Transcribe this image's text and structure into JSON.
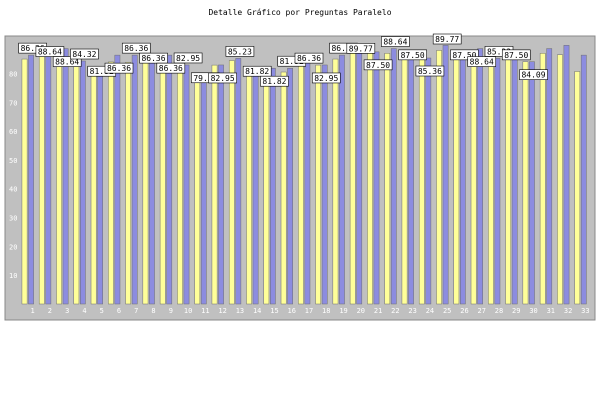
{
  "colors": {
    "plot_bg": "#c0c0c0",
    "series_a": "#8c8ce0",
    "series_b": "#ffff99",
    "bar_border": "#6e6e6e",
    "tick_text": "#ffffff",
    "label_bg": "#ffffff"
  },
  "chart_data": {
    "type": "bar",
    "title": "Detalle Gráfico por Preguntas Paralelo",
    "xlabel": "",
    "ylabel": "",
    "ylim": [
      0,
      93
    ],
    "yticks": [
      10,
      20,
      30,
      40,
      50,
      60,
      70,
      80
    ],
    "grid": false,
    "categories": [
      "1",
      "2",
      "3",
      "4",
      "5",
      "6",
      "7",
      "8",
      "9",
      "10",
      "11",
      "12",
      "13",
      "14",
      "15",
      "16",
      "17",
      "18",
      "19",
      "20",
      "21",
      "22",
      "23",
      "24",
      "25",
      "26",
      "27",
      "28",
      "29",
      "30",
      "31",
      "32",
      "33"
    ],
    "series": [
      {
        "values": [
          86.36,
          88.64,
          88.64,
          84.32,
          81.82,
          86.36,
          86.36,
          86.36,
          86.36,
          82.95,
          79.55,
          82.95,
          85.23,
          81.82,
          81.82,
          81.82,
          86.36,
          82.95,
          86.36,
          89.77,
          87.5,
          88.64,
          87.5,
          85.36,
          89.77,
          87.5,
          88.64,
          85.23,
          87.5,
          84.09,
          88.64,
          89.77,
          86.36
        ]
      },
      {
        "values": [
          85.0,
          86.0,
          86.0,
          82.5,
          81.8,
          84.0,
          83.9,
          84.0,
          84.5,
          82.5,
          79.5,
          82.9,
          84.5,
          80.5,
          80.5,
          80.5,
          85.0,
          82.9,
          85.0,
          87.0,
          87.5,
          87.0,
          87.0,
          85.3,
          88.0,
          87.5,
          86.5,
          85.2,
          86.0,
          84.1,
          87.0,
          86.5,
          80.7
        ]
      }
    ],
    "data_labels": [
      {
        "index": 1,
        "text": "86.36"
      },
      {
        "index": 2,
        "text": "88.64"
      },
      {
        "index": 3,
        "text": "88.64"
      },
      {
        "index": 4,
        "text": "84.32"
      },
      {
        "index": 5,
        "text": "81.82"
      },
      {
        "index": 6,
        "text": "86.36"
      },
      {
        "index": 7,
        "text": "86.36"
      },
      {
        "index": 8,
        "text": "86.36"
      },
      {
        "index": 9,
        "text": "86.36"
      },
      {
        "index": 10,
        "text": "82.95"
      },
      {
        "index": 11,
        "text": "79.55"
      },
      {
        "index": 12,
        "text": "82.95"
      },
      {
        "index": 13,
        "text": "85.23"
      },
      {
        "index": 14,
        "text": "81.82"
      },
      {
        "index": 15,
        "text": "81.82"
      },
      {
        "index": 16,
        "text": "81.82"
      },
      {
        "index": 17,
        "text": "86.36"
      },
      {
        "index": 18,
        "text": "82.95"
      },
      {
        "index": 19,
        "text": "86.36"
      },
      {
        "index": 20,
        "text": "89.77"
      },
      {
        "index": 21,
        "text": "87.50"
      },
      {
        "index": 22,
        "text": "88.64"
      },
      {
        "index": 23,
        "text": "87.50"
      },
      {
        "index": 24,
        "text": "85.36"
      },
      {
        "index": 25,
        "text": "89.77"
      },
      {
        "index": 26,
        "text": "87.50"
      },
      {
        "index": 27,
        "text": "88.64"
      },
      {
        "index": 28,
        "text": "85.23"
      },
      {
        "index": 29,
        "text": "87.50"
      },
      {
        "index": 30,
        "text": "84.09"
      }
    ]
  }
}
